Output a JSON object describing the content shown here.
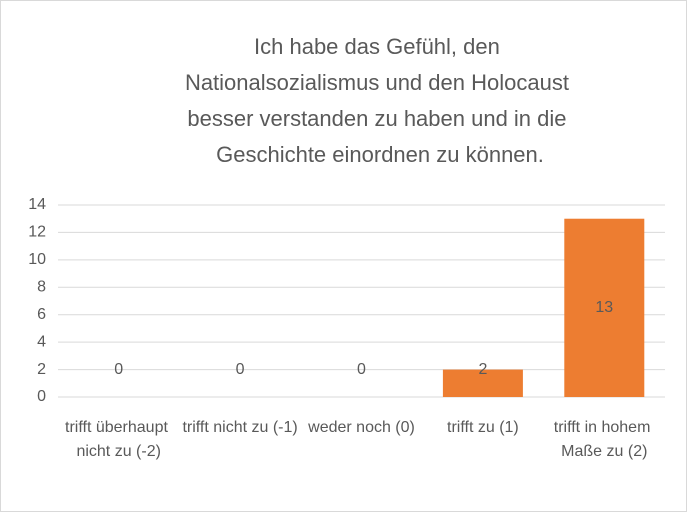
{
  "chart_data": {
    "type": "bar",
    "title": "Ich habe das Gefühl, den Nationalsozialismus und den Holocaust besser verstanden zu haben und in die Geschichte einordnen zu können.",
    "categories": [
      "trifft überhaupt nicht zu (-2)",
      "trifft nicht zu (-1)",
      "weder noch (0)",
      "trifft zu (1)",
      "trifft in hohem Maße zu (2)"
    ],
    "values": [
      0,
      0,
      0,
      2,
      13
    ],
    "color": "#ed7d31",
    "ylim": [
      0,
      14
    ],
    "yticks": [
      0,
      2,
      4,
      6,
      8,
      10,
      12,
      14
    ],
    "grid": true
  }
}
